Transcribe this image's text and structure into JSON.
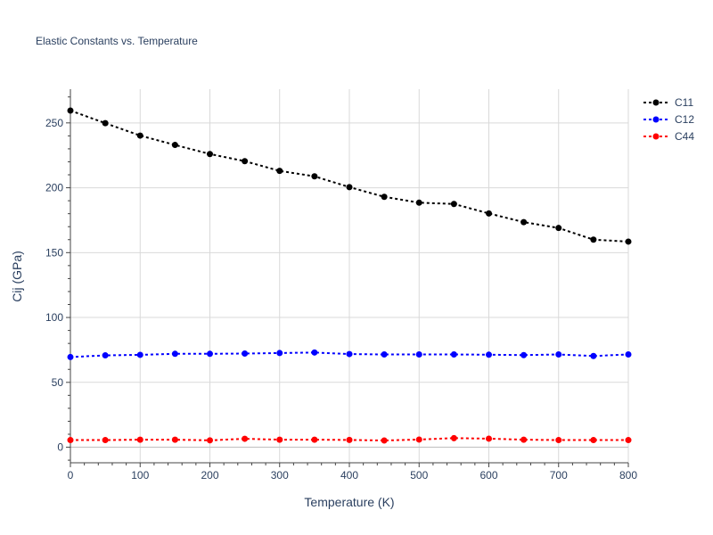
{
  "chart_data": {
    "type": "line",
    "title": "Elastic Constants vs. Temperature",
    "xlabel": "Temperature (K)",
    "ylabel": "Cij (GPa)",
    "xlim": [
      0,
      800
    ],
    "ylim": [
      -12,
      276
    ],
    "xticks": [
      0,
      100,
      200,
      300,
      400,
      500,
      600,
      700,
      800
    ],
    "yticks": [
      0,
      50,
      100,
      150,
      200,
      250
    ],
    "grid": true,
    "legend_position": "top-right",
    "x": [
      0,
      50,
      100,
      150,
      200,
      250,
      300,
      350,
      400,
      450,
      500,
      550,
      600,
      650,
      700,
      750,
      800
    ],
    "series": [
      {
        "name": "C11",
        "color": "#000000",
        "values": [
          259.5,
          249.8,
          240.2,
          233.0,
          226.0,
          220.5,
          213.0,
          208.8,
          200.5,
          193.0,
          188.5,
          187.5,
          180.2,
          173.5,
          169.0,
          160.0,
          158.5
        ]
      },
      {
        "name": "C12",
        "color": "#0000ff",
        "values": [
          69.5,
          70.8,
          71.2,
          72.0,
          72.0,
          72.2,
          72.6,
          73.0,
          71.8,
          71.5,
          71.5,
          71.5,
          71.3,
          71.0,
          71.5,
          70.3,
          71.5
        ]
      },
      {
        "name": "C44",
        "color": "#ff0000",
        "values": [
          5.5,
          5.5,
          5.8,
          5.8,
          5.3,
          6.5,
          5.8,
          5.8,
          5.6,
          5.2,
          5.9,
          7.0,
          6.6,
          5.8,
          5.5,
          5.5,
          5.5
        ]
      }
    ]
  }
}
